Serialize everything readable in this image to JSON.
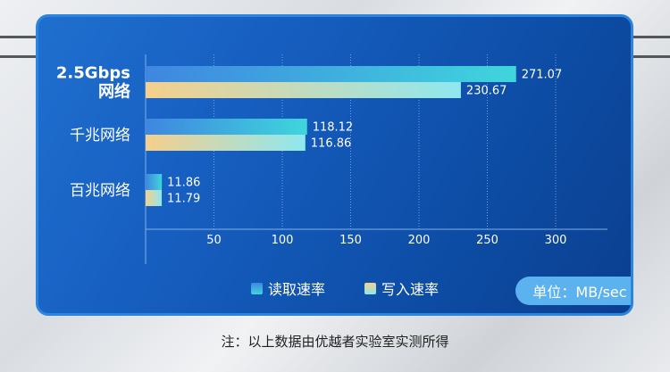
{
  "chart_data": {
    "type": "bar",
    "orientation": "horizontal",
    "categories": [
      "2.5Gbps\n网络",
      "千兆网络",
      "百兆网络"
    ],
    "series": [
      {
        "name": "读取速率",
        "values": [
          271.07,
          118.12,
          11.86
        ]
      },
      {
        "name": "写入速率",
        "values": [
          230.67,
          116.86,
          11.79
        ]
      }
    ],
    "xlim": [
      0,
      330
    ],
    "xticks": [
      50,
      100,
      150,
      200,
      250,
      300
    ],
    "grid": true,
    "legend": "bottom"
  },
  "legend": {
    "read_label": "读取速率",
    "write_label": "写入速率"
  },
  "unit_label": "单位：MB/sec",
  "footnote": "注：以上数据由优越者实验室实测所得",
  "colors": {
    "panel": "#1760c2",
    "read_bar": [
      "#3f86e0",
      "#3fd6dc"
    ],
    "write_bar": [
      "#f5cf8c",
      "#8fe7ef"
    ],
    "grid": "#6fa0e0",
    "unit_pill": "#5bb2ef"
  }
}
